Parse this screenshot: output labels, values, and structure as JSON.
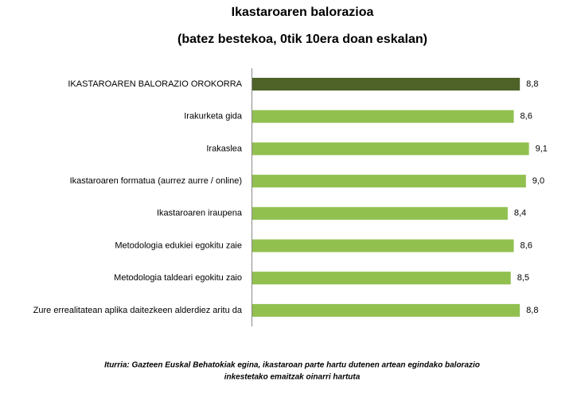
{
  "chart_data": {
    "type": "hbar",
    "title": "Ikastaroaren balorazioa",
    "subtitle": "(batez bestekoa, 0tik 10era doan eskalan)",
    "categories": [
      "IKASTAROAREN BALORAZIO OROKORRA",
      "Irakurketa gida",
      "Irakaslea",
      "Ikastaroaren formatua (aurrez aurre / online)",
      "Ikastaroaren iraupena",
      "Metodologia edukiei egokitu zaie",
      "Metodologia taldeari egokitu zaio",
      "Zure errealitatean aplika daitezkeen alderdiez aritu da"
    ],
    "values": [
      8.8,
      8.6,
      9.1,
      9.0,
      8.4,
      8.6,
      8.5,
      8.8
    ],
    "value_labels": [
      "8,8",
      "8,6",
      "9,1",
      "9,0",
      "8,4",
      "8,6",
      "8,5",
      "8,8"
    ],
    "colors": [
      "#4f6228",
      "#92c04f",
      "#92c04f",
      "#92c04f",
      "#92c04f",
      "#92c04f",
      "#92c04f",
      "#92c04f"
    ],
    "notes": [
      "Iturria: Gazteen Euskal Behatokiak egina, ikastaroan parte hartu dutenen artean egindako balorazio",
      "inkestetako emaitzak oinarri hartuta"
    ]
  }
}
